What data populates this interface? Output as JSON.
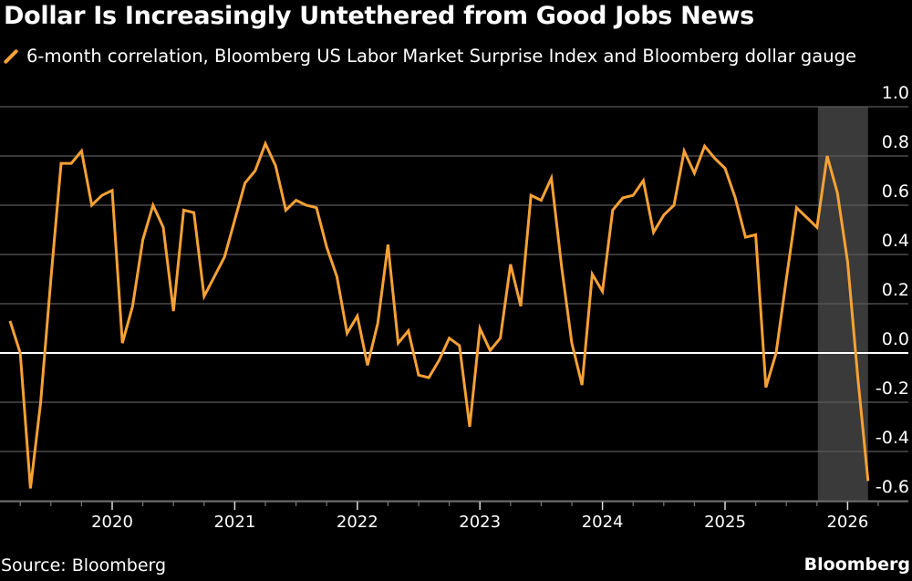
{
  "header": {
    "title": "Dollar Is Increasingly Untethered from Good Jobs News",
    "legend_label": "6-month correlation, Bloomberg US Labor Market Surprise Index and Bloomberg dollar gauge"
  },
  "footer": {
    "source": "Source: Bloomberg",
    "brand": "Bloomberg"
  },
  "colors": {
    "background": "#000000",
    "series": "#f7a135",
    "grid": "#5a5a5a",
    "zero_line": "#ffffff",
    "shade": "#3a3a3a"
  },
  "chart_data": {
    "type": "line",
    "title": "Dollar Is Increasingly Untethered from Good Jobs News",
    "xlabel": "",
    "ylabel": "",
    "ylim": [
      -0.6,
      1.0
    ],
    "yticks": [
      1.0,
      0.8,
      0.6,
      0.4,
      0.2,
      0.0,
      -0.2,
      -0.4,
      -0.6
    ],
    "ytick_labels": [
      "1.0",
      "0.8",
      "0.6",
      "0.4",
      "0.2",
      "0.0",
      "-0.2",
      "-0.4",
      "-0.6"
    ],
    "xlim": [
      "2019-03",
      "2026-03"
    ],
    "xticks": [
      "2020",
      "2021",
      "2022",
      "2023",
      "2024",
      "2025",
      "2026"
    ],
    "grid": true,
    "legend_position": "top-left",
    "shaded_region": {
      "start": "2025-10",
      "end": "2026-03"
    },
    "series": [
      {
        "name": "6-month correlation, Bloomberg US Labor Market Surprise Index and Bloomberg dollar gauge",
        "start": "2019-03",
        "frequency": "monthly",
        "values": [
          0.13,
          0.0,
          -0.55,
          -0.2,
          0.3,
          0.77,
          0.77,
          0.82,
          0.6,
          0.64,
          0.66,
          0.04,
          0.19,
          0.46,
          0.6,
          0.51,
          0.17,
          0.58,
          0.57,
          0.23,
          0.31,
          0.39,
          0.54,
          0.69,
          0.74,
          0.85,
          0.76,
          0.58,
          0.62,
          0.6,
          0.59,
          0.43,
          0.31,
          0.08,
          0.15,
          -0.05,
          0.12,
          0.44,
          0.04,
          0.09,
          -0.09,
          -0.1,
          -0.03,
          0.06,
          0.03,
          -0.3,
          0.1,
          0.01,
          0.06,
          0.36,
          0.19,
          0.64,
          0.62,
          0.71,
          0.35,
          0.04,
          -0.13,
          0.32,
          0.25,
          0.58,
          0.63,
          0.64,
          0.7,
          0.49,
          0.56,
          0.6,
          0.82,
          0.73,
          0.84,
          0.79,
          0.75,
          0.63,
          0.47,
          0.48,
          -0.14,
          0.0,
          0.3,
          0.59,
          0.55,
          0.51,
          0.8,
          0.65,
          0.37,
          -0.1,
          -0.52
        ]
      }
    ]
  }
}
